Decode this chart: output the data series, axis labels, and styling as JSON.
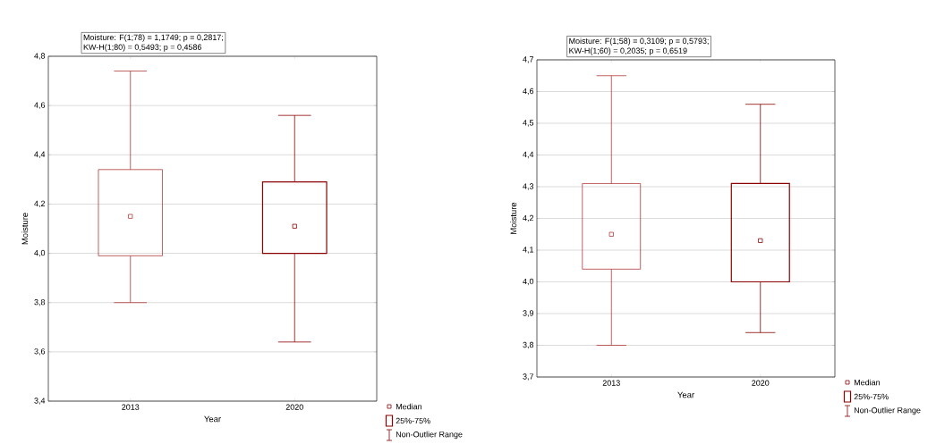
{
  "chart_data": [
    {
      "type": "box",
      "categories": [
        "2013",
        "2020"
      ],
      "boxes": [
        {
          "low": 3.8,
          "q1": 3.99,
          "median": 4.15,
          "q3": 4.34,
          "high": 4.74
        },
        {
          "low": 3.64,
          "q1": 4.0,
          "median": 4.11,
          "q3": 4.29,
          "high": 4.56
        }
      ],
      "colors": [
        "#b03a3a",
        "#8b0000"
      ],
      "marker": "square",
      "grid": "y",
      "xlabel": "Year",
      "ylabel": "Moisture",
      "ylim": [
        3.4,
        4.8
      ],
      "yticks": [
        {
          "value": 3.4,
          "label": "3,4"
        },
        {
          "value": 3.6,
          "label": "3,6"
        },
        {
          "value": 3.8,
          "label": "3,8"
        },
        {
          "value": 4.0,
          "label": "4,0"
        },
        {
          "value": 4.2,
          "label": "4,2"
        },
        {
          "value": 4.4,
          "label": "4,4"
        },
        {
          "value": 4.6,
          "label": "4,6"
        },
        {
          "value": 4.8,
          "label": "4,8"
        }
      ],
      "annotations": [
        "Moisture:   F(1;78) = 1,1749; p = 0,2817;",
        "KW-H(1;80) = 0,5493; p = 0,4586",
        "Median",
        "25%-75%",
        "Non-Outlier Range"
      ]
    },
    {
      "type": "box",
      "categories": [
        "2013",
        "2020"
      ],
      "boxes": [
        {
          "low": 3.8,
          "q1": 4.04,
          "median": 4.15,
          "q3": 4.31,
          "high": 4.65
        },
        {
          "low": 3.84,
          "q1": 4.0,
          "median": 4.13,
          "q3": 4.31,
          "high": 4.56
        }
      ],
      "colors": [
        "#b03a3a",
        "#8b0000"
      ],
      "marker": "square",
      "grid": "y",
      "xlabel": "Year",
      "ylabel": "Moisture",
      "ylim": [
        3.7,
        4.7
      ],
      "yticks": [
        {
          "value": 3.7,
          "label": "3,7"
        },
        {
          "value": 3.8,
          "label": "3,8"
        },
        {
          "value": 3.9,
          "label": "3,9"
        },
        {
          "value": 4.0,
          "label": "4,0"
        },
        {
          "value": 4.1,
          "label": "4,1"
        },
        {
          "value": 4.2,
          "label": "4,2"
        },
        {
          "value": 4.3,
          "label": "4,3"
        },
        {
          "value": 4.4,
          "label": "4,4"
        },
        {
          "value": 4.5,
          "label": "4,5"
        },
        {
          "value": 4.6,
          "label": "4,6"
        },
        {
          "value": 4.7,
          "label": "4,7"
        }
      ],
      "annotations": [
        "Moisture:   F(1;58) = 0,3109; p = 0,5793;",
        "KW-H(1;60) = 0,2035; p = 0,6519",
        "Median",
        "25%-75%",
        "Non-Outlier Range"
      ]
    }
  ]
}
